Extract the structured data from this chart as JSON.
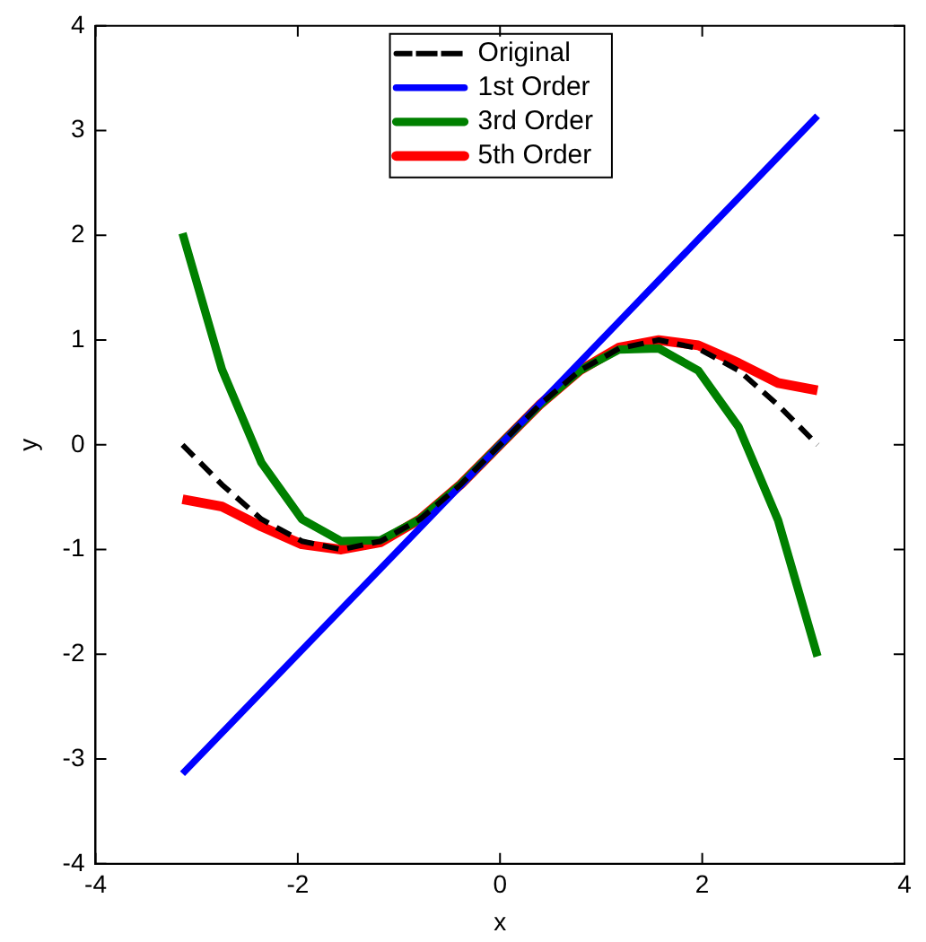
{
  "chart_data": {
    "type": "line",
    "xlabel": "x",
    "ylabel": "y",
    "xlim": [
      -4,
      4
    ],
    "xticks": [
      -4,
      -2,
      0,
      2,
      4
    ],
    "ylim": [
      -4,
      4
    ],
    "yticks": [
      -4,
      -3,
      -2,
      -1,
      0,
      1,
      2,
      3,
      4
    ],
    "grid": false,
    "legend": "top",
    "marker": "none",
    "x": [
      -3.14,
      -2.75,
      -2.36,
      -1.96,
      -1.57,
      -1.18,
      -0.79,
      -0.39,
      0,
      0.39,
      0.79,
      1.18,
      1.57,
      1.96,
      2.36,
      2.75,
      3.14
    ],
    "series": [
      {
        "name": "Original",
        "color": "#000000",
        "line_style": "dashed",
        "values": [
          0,
          -0.38,
          -0.71,
          -0.92,
          -1,
          -0.92,
          -0.71,
          -0.38,
          0,
          0.38,
          0.71,
          0.92,
          1,
          0.92,
          0.71,
          0.38,
          0
        ]
      },
      {
        "name": "1st Order",
        "color": "#0000ff",
        "line_style": "solid",
        "values": [
          -3.14,
          -2.75,
          -2.36,
          -1.96,
          -1.57,
          -1.18,
          -0.79,
          -0.39,
          0,
          0.39,
          0.79,
          1.18,
          1.57,
          1.96,
          2.36,
          2.75,
          3.14
        ]
      },
      {
        "name": "3rd Order",
        "color": "#008000",
        "line_style": "solid",
        "values": [
          2.02,
          0.72,
          -0.17,
          -0.71,
          -0.92,
          -0.91,
          -0.71,
          -0.38,
          0,
          0.38,
          0.71,
          0.91,
          0.92,
          0.71,
          0.17,
          -0.72,
          -2.02
        ]
      },
      {
        "name": "5th Order",
        "color": "#ff0000",
        "line_style": "solid",
        "values": [
          -0.52,
          -0.59,
          -0.78,
          -0.95,
          -1,
          -0.93,
          -0.71,
          -0.38,
          0,
          0.38,
          0.71,
          0.93,
          1,
          0.95,
          0.78,
          0.59,
          0.52
        ]
      }
    ]
  }
}
